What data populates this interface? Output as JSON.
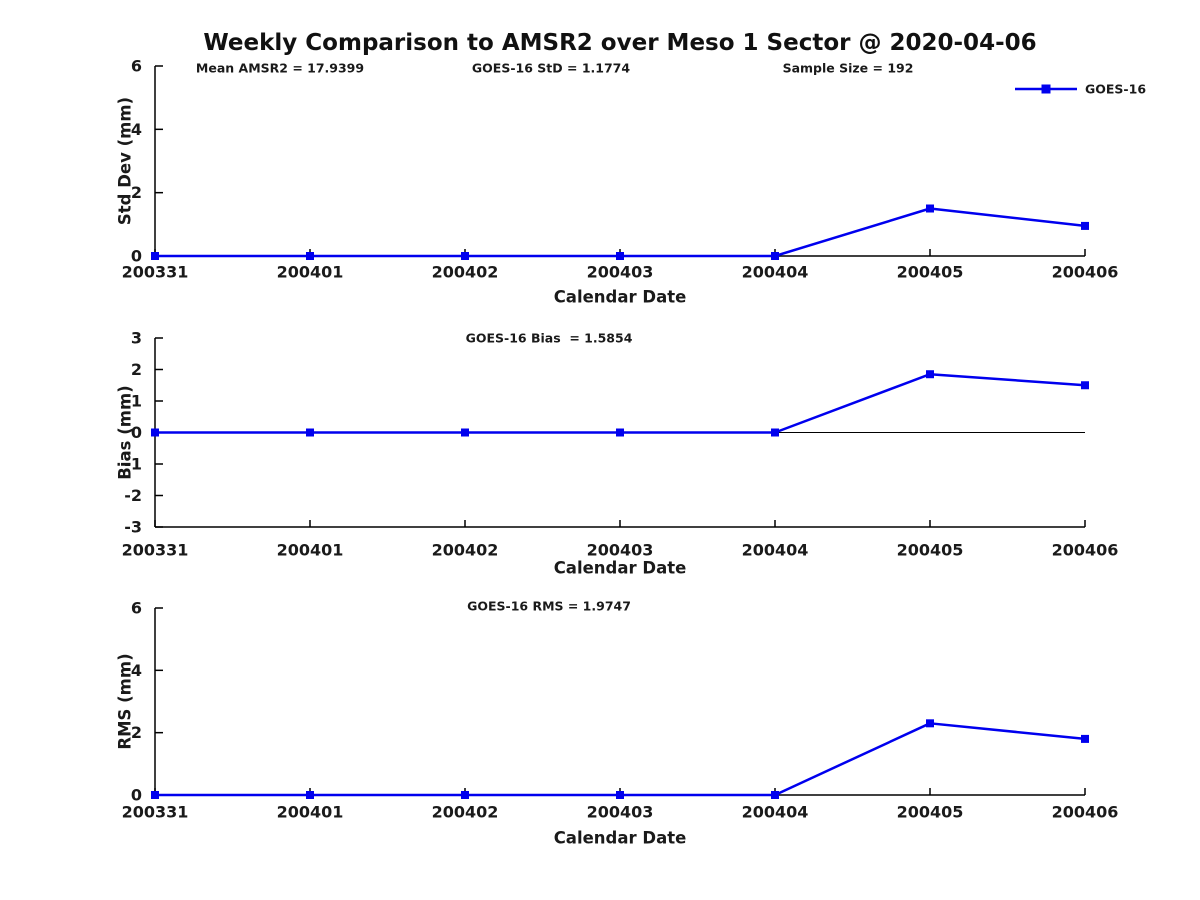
{
  "title": "Weekly Comparison to AMSR2 over Meso 1 Sector @ 2020-04-06",
  "legend": {
    "label": "GOES-16",
    "position": "top-right-above-axes"
  },
  "colors": {
    "series_blue": "#0000EE",
    "axis_black": "#000000",
    "text_dark": "#1a1a1a"
  },
  "chart_data": [
    {
      "type": "line",
      "subplot": "std-dev",
      "annotations": [
        "Mean AMSR2 = 17.9399",
        "GOES-16 StD = 1.1774",
        "Sample Size = 192"
      ],
      "categories": [
        "200331",
        "200401",
        "200402",
        "200403",
        "200404",
        "200405",
        "200406"
      ],
      "series": [
        {
          "name": "GOES-16",
          "values": [
            0,
            0,
            0,
            0,
            0,
            1.5,
            0.95
          ],
          "marker": "square"
        }
      ],
      "xlabel": "Calendar Date",
      "ylabel": "Std Dev (mm)",
      "ylim": [
        0,
        6
      ],
      "yticks": [
        0,
        2,
        4,
        6
      ],
      "grid": false,
      "zero_line": false,
      "show_legend": true
    },
    {
      "type": "line",
      "subplot": "bias",
      "annotations": [
        "GOES-16 Bias  = 1.5854"
      ],
      "categories": [
        "200331",
        "200401",
        "200402",
        "200403",
        "200404",
        "200405",
        "200406"
      ],
      "series": [
        {
          "name": "GOES-16",
          "values": [
            0,
            0,
            0,
            0,
            0,
            1.85,
            1.5
          ],
          "marker": "square"
        }
      ],
      "xlabel": "Calendar Date",
      "ylabel": "Bias (mm)",
      "ylim": [
        -3,
        3
      ],
      "yticks": [
        -3,
        -2,
        -1,
        0,
        1,
        2,
        3
      ],
      "grid": false,
      "zero_line": true,
      "show_legend": false
    },
    {
      "type": "line",
      "subplot": "rms",
      "annotations": [
        "GOES-16 RMS = 1.9747"
      ],
      "categories": [
        "200331",
        "200401",
        "200402",
        "200403",
        "200404",
        "200405",
        "200406"
      ],
      "series": [
        {
          "name": "GOES-16",
          "values": [
            0,
            0,
            0,
            0,
            0,
            2.3,
            1.8
          ],
          "marker": "square"
        }
      ],
      "xlabel": "Calendar Date",
      "ylabel": "RMS (mm)",
      "ylim": [
        0,
        6
      ],
      "yticks": [
        0,
        2,
        4,
        6
      ],
      "grid": false,
      "zero_line": false,
      "show_legend": false
    }
  ]
}
